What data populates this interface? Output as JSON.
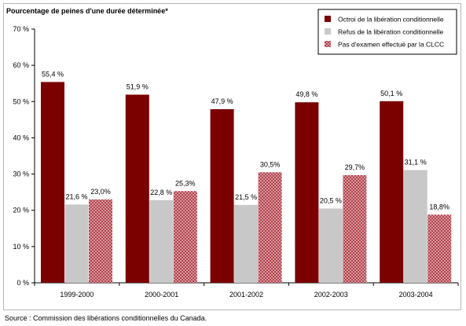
{
  "chart_data": {
    "type": "bar",
    "ylabel": "Pourcentage de peines d'une durée déterminée*",
    "ylim": [
      0,
      70
    ],
    "yticks": [
      0,
      10,
      20,
      30,
      40,
      50,
      60,
      70
    ],
    "ytick_labels": [
      "0 %",
      "10 %",
      "20 %",
      "30 %",
      "40 %",
      "50 %",
      "60 %",
      "70 %"
    ],
    "categories": [
      "1999-2000",
      "2000-2001",
      "2001-2002",
      "2002-2003",
      "2003-2004"
    ],
    "series": [
      {
        "name": "Octroi de la libération conditionnelle",
        "values": [
          55.4,
          51.9,
          47.9,
          49.8,
          50.1
        ],
        "labels": [
          "55,4 %",
          "51,9 %",
          "47,9 %",
          "49,8 %",
          "50,1 %"
        ],
        "color": "#7b0000",
        "pattern": "solid"
      },
      {
        "name": "Refus de la libération conditionnelle",
        "values": [
          21.6,
          22.8,
          21.5,
          20.5,
          31.1
        ],
        "labels": [
          "21,6 %",
          "22,8 %",
          "21,5 %",
          "20,5 %",
          "31,1 %"
        ],
        "color": "#c8c8c8",
        "pattern": "solid"
      },
      {
        "name": "Pas d'examen effectué par la CLCC",
        "values": [
          23.0,
          25.3,
          30.5,
          29.7,
          18.8
        ],
        "labels": [
          "23,0%",
          "25,3%",
          "30,5%",
          "29,7%",
          "18,8%"
        ],
        "color": "#c0394a",
        "pattern": "crosshatch"
      }
    ],
    "legend_position": "top-right",
    "grid": false
  },
  "source": "Source : Commission des libérations conditionnelles du Canada."
}
